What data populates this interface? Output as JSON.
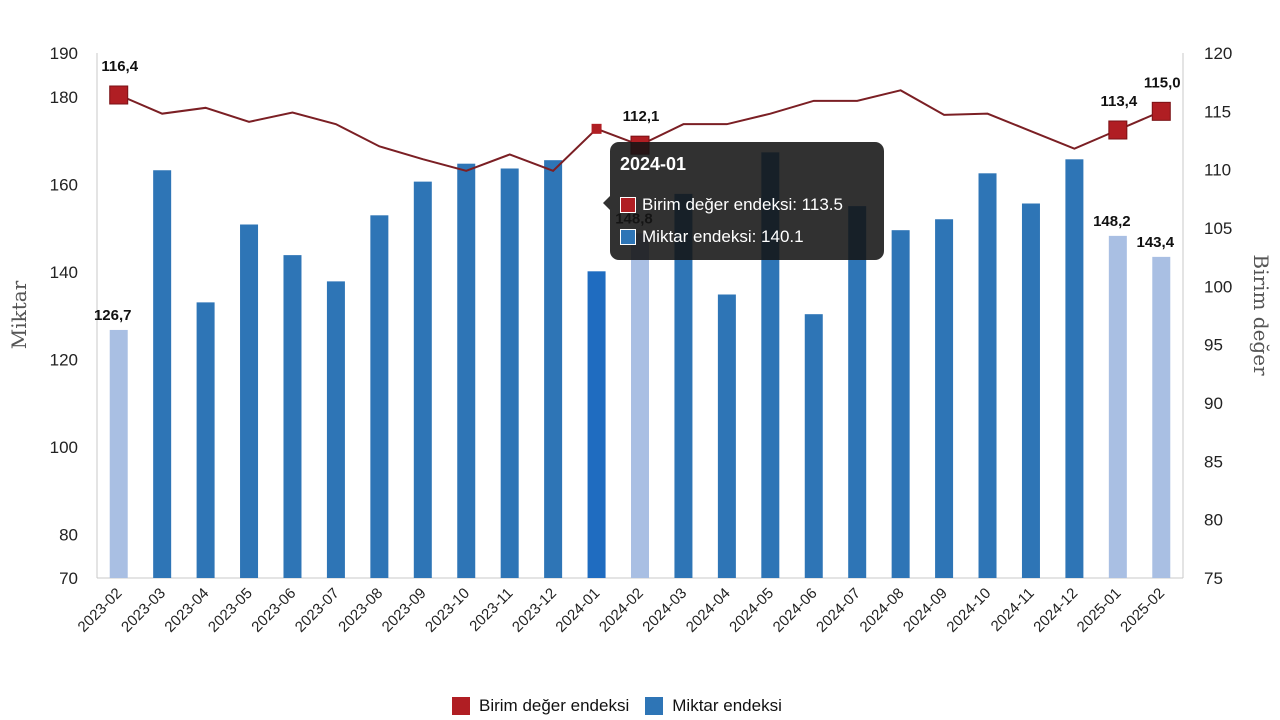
{
  "chart_data": {
    "type": "bar",
    "categories": [
      "2023-02",
      "2023-03",
      "2023-04",
      "2023-05",
      "2023-06",
      "2023-07",
      "2023-08",
      "2023-09",
      "2023-10",
      "2023-11",
      "2023-12",
      "2024-01",
      "2024-02",
      "2024-03",
      "2024-04",
      "2024-05",
      "2024-06",
      "2024-07",
      "2024-08",
      "2024-09",
      "2024-10",
      "2024-11",
      "2024-12",
      "2025-01",
      "2025-02"
    ],
    "ylabel_left": "Miktar",
    "ylabel_right": "Birim değer",
    "y_left": {
      "ticks": [
        70,
        80,
        100,
        120,
        140,
        160,
        180,
        190
      ],
      "min": 70,
      "max": 190
    },
    "y_right": {
      "ticks": [
        75,
        80,
        85,
        90,
        95,
        100,
        105,
        110,
        115,
        120
      ],
      "min": 75,
      "max": 120
    },
    "grid": false,
    "legend_position": "bottom",
    "series": [
      {
        "name": "Miktar endeksi",
        "type": "bar",
        "axis": "left",
        "color": "#2e75b6",
        "highlight_color": "#a9bfe3",
        "values": [
          126.7,
          163.2,
          133.0,
          150.8,
          143.8,
          137.8,
          152.9,
          160.6,
          164.7,
          163.6,
          165.5,
          140.1,
          148.8,
          157.8,
          134.8,
          167.3,
          130.3,
          155.0,
          149.5,
          152.0,
          162.5,
          155.6,
          165.7,
          148.2,
          143.4
        ],
        "highlighted": [
          true,
          false,
          false,
          false,
          false,
          false,
          false,
          false,
          false,
          false,
          false,
          false,
          true,
          false,
          false,
          false,
          false,
          false,
          false,
          false,
          false,
          false,
          false,
          true,
          true
        ],
        "data_labels": [
          "126,7",
          "",
          "",
          "",
          "",
          "",
          "",
          "",
          "",
          "",
          "",
          "",
          "148,8",
          "",
          "",
          "",
          "",
          "",
          "",
          "",
          "",
          "",
          "",
          "148,2",
          "143,4"
        ]
      },
      {
        "name": "Birim değer endeksi",
        "type": "line",
        "axis": "right",
        "color": "#7b1f24",
        "marker_color": "#b01e23",
        "values": [
          116.4,
          114.8,
          115.3,
          114.1,
          114.9,
          113.9,
          112.0,
          110.9,
          109.9,
          111.3,
          109.9,
          113.5,
          112.1,
          113.9,
          113.9,
          114.8,
          115.9,
          115.9,
          116.8,
          114.7,
          114.8,
          113.3,
          111.8,
          113.4,
          115.0
        ],
        "markers": [
          true,
          false,
          false,
          false,
          false,
          false,
          false,
          false,
          false,
          false,
          false,
          false,
          true,
          false,
          false,
          false,
          false,
          false,
          false,
          false,
          false,
          false,
          false,
          true,
          true
        ],
        "data_labels": [
          "116,4",
          "",
          "",
          "",
          "",
          "",
          "",
          "",
          "",
          "",
          "",
          "",
          "112,1",
          "",
          "",
          "",
          "",
          "",
          "",
          "",
          "",
          "",
          "",
          "113,4",
          "115,0"
        ]
      }
    ]
  },
  "tooltip": {
    "title": "2024-01",
    "rows": [
      {
        "text": "Birim değer endeksi: 113.5",
        "color": "#b01e23"
      },
      {
        "text": "Miktar endeksi: 140.1",
        "color": "#2e75b6"
      }
    ]
  },
  "hovered_index": 11,
  "hovered_bar_color": "#1f6cc0"
}
